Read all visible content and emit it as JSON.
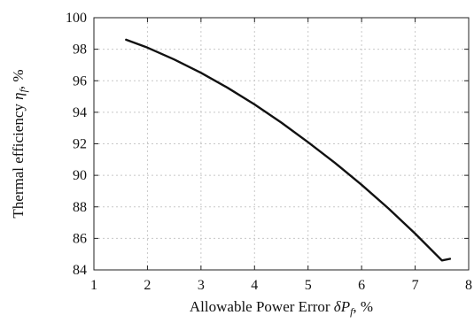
{
  "chart_data": {
    "type": "line",
    "xlabel": {
      "prefix": "Allowable Power Error ",
      "symbol": "δ",
      "var": "P",
      "sub": "f",
      "suffix": ", %"
    },
    "ylabel": {
      "prefix": "Thermal efficiency ",
      "var": "η",
      "sub": "f",
      "suffix": ", %"
    },
    "xlim": [
      1,
      8
    ],
    "ylim": [
      84,
      100
    ],
    "x_ticks": [
      1,
      2,
      3,
      4,
      5,
      6,
      7,
      8
    ],
    "y_ticks": [
      84,
      86,
      88,
      90,
      92,
      94,
      96,
      98,
      100
    ],
    "grid": true,
    "series": [
      {
        "x": [
          1.6,
          2.0,
          2.5,
          3.0,
          3.5,
          4.0,
          4.5,
          5.0,
          5.5,
          6.0,
          6.5,
          7.0,
          7.5,
          7.65
        ],
        "y": [
          98.6,
          98.1,
          97.35,
          96.5,
          95.55,
          94.5,
          93.35,
          92.1,
          90.8,
          89.4,
          87.9,
          86.3,
          84.6,
          84.7
        ]
      }
    ]
  }
}
